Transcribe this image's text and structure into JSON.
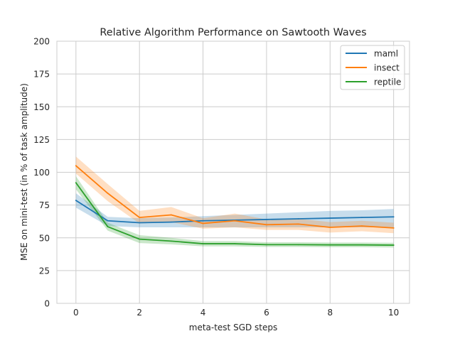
{
  "chart_data": {
    "type": "line",
    "title": "Relative Algorithm Performance on Sawtooth Waves",
    "xlabel": "meta-test SGD steps",
    "ylabel": "MSE on mini-test (in % of task amplitude)",
    "xlim": [
      -0.6,
      10.5
    ],
    "ylim": [
      0,
      200
    ],
    "xticks": [
      0,
      2,
      4,
      6,
      8,
      10
    ],
    "yticks": [
      0,
      25,
      50,
      75,
      100,
      125,
      150,
      175,
      200
    ],
    "grid": true,
    "legend_position": "top-right",
    "x": [
      0,
      1,
      2,
      3,
      4,
      5,
      6,
      7,
      8,
      9,
      10
    ],
    "series": [
      {
        "name": "maml",
        "color": "#1f77b4",
        "values": [
          78.5,
          63,
          61.5,
          62,
          63,
          63.5,
          64,
          64.5,
          65,
          65.5,
          66
        ],
        "lower": [
          73,
          59,
          58,
          58,
          58,
          58,
          58,
          58,
          58,
          58,
          58
        ],
        "upper": [
          84,
          66,
          65,
          65.5,
          66.5,
          67.5,
          68.5,
          69.5,
          70.5,
          71,
          72
        ]
      },
      {
        "name": "insect",
        "color": "#ff7f0e",
        "values": [
          105,
          84,
          65.5,
          67.5,
          61,
          63,
          60,
          60.5,
          58,
          59,
          57.5
        ],
        "lower": [
          99,
          78,
          61,
          62,
          57,
          58,
          56,
          56,
          54,
          55,
          53.5
        ],
        "upper": [
          112,
          91,
          70.5,
          73.5,
          65,
          68.5,
          64,
          64.5,
          62,
          63,
          61.5
        ]
      },
      {
        "name": "reptile",
        "color": "#2ca02c",
        "values": [
          92,
          58.5,
          49,
          47.5,
          45.5,
          45.5,
          44.8,
          44.8,
          44.6,
          44.6,
          44.4
        ],
        "lower": [
          87,
          55.5,
          46,
          45,
          43.5,
          43.5,
          43,
          43,
          42.8,
          42.8,
          42.6
        ],
        "upper": [
          97,
          61.5,
          52,
          50,
          47.5,
          47.5,
          46.6,
          46.6,
          46.4,
          46.4,
          46.2
        ]
      }
    ]
  }
}
